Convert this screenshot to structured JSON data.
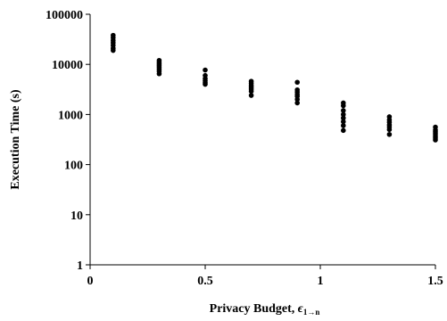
{
  "chart_data": {
    "type": "scatter",
    "title": "",
    "xlabel": "Privacy Budget, ",
    "xlabel_symbol": "ϵ",
    "xlabel_subscript": "1→n",
    "ylabel": "Execution Time (s)",
    "xlim": [
      0,
      1.5
    ],
    "ylim": [
      1,
      100000
    ],
    "yscale": "log",
    "grid": false,
    "legend": "none",
    "x_ticks": [
      0,
      0.5,
      1,
      1.5
    ],
    "x_tick_labels": [
      "0",
      "0.5",
      "1",
      "1.5"
    ],
    "y_ticks": [
      1,
      10,
      100,
      1000,
      10000,
      100000
    ],
    "y_tick_labels": [
      "1",
      "10",
      "100",
      "1000",
      "10000",
      "100000"
    ],
    "marker_color": "#000000",
    "points": [
      {
        "x": 0.1,
        "y": 38000
      },
      {
        "x": 0.1,
        "y": 34000
      },
      {
        "x": 0.1,
        "y": 30000
      },
      {
        "x": 0.1,
        "y": 27000
      },
      {
        "x": 0.1,
        "y": 24000
      },
      {
        "x": 0.1,
        "y": 21000
      },
      {
        "x": 0.1,
        "y": 19000
      },
      {
        "x": 0.3,
        "y": 12000
      },
      {
        "x": 0.3,
        "y": 11000
      },
      {
        "x": 0.3,
        "y": 10200
      },
      {
        "x": 0.3,
        "y": 9500
      },
      {
        "x": 0.3,
        "y": 8800
      },
      {
        "x": 0.3,
        "y": 8000
      },
      {
        "x": 0.3,
        "y": 7300
      },
      {
        "x": 0.3,
        "y": 6500
      },
      {
        "x": 0.5,
        "y": 7700
      },
      {
        "x": 0.5,
        "y": 6000
      },
      {
        "x": 0.5,
        "y": 5200
      },
      {
        "x": 0.5,
        "y": 4700
      },
      {
        "x": 0.5,
        "y": 4300
      },
      {
        "x": 0.5,
        "y": 4000
      },
      {
        "x": 0.7,
        "y": 4600
      },
      {
        "x": 0.7,
        "y": 4200
      },
      {
        "x": 0.7,
        "y": 3800
      },
      {
        "x": 0.7,
        "y": 3500
      },
      {
        "x": 0.7,
        "y": 3200
      },
      {
        "x": 0.7,
        "y": 2900
      },
      {
        "x": 0.7,
        "y": 2400
      },
      {
        "x": 0.9,
        "y": 4400
      },
      {
        "x": 0.9,
        "y": 3100
      },
      {
        "x": 0.9,
        "y": 2800
      },
      {
        "x": 0.9,
        "y": 2500
      },
      {
        "x": 0.9,
        "y": 2300
      },
      {
        "x": 0.9,
        "y": 2000
      },
      {
        "x": 0.9,
        "y": 1700
      },
      {
        "x": 1.1,
        "y": 1700
      },
      {
        "x": 1.1,
        "y": 1500
      },
      {
        "x": 1.1,
        "y": 1200
      },
      {
        "x": 1.1,
        "y": 1000
      },
      {
        "x": 1.1,
        "y": 850
      },
      {
        "x": 1.1,
        "y": 720
      },
      {
        "x": 1.1,
        "y": 600
      },
      {
        "x": 1.1,
        "y": 480
      },
      {
        "x": 1.3,
        "y": 900
      },
      {
        "x": 1.3,
        "y": 780
      },
      {
        "x": 1.3,
        "y": 700
      },
      {
        "x": 1.3,
        "y": 620
      },
      {
        "x": 1.3,
        "y": 560
      },
      {
        "x": 1.3,
        "y": 500
      },
      {
        "x": 1.3,
        "y": 400
      },
      {
        "x": 1.5,
        "y": 560
      },
      {
        "x": 1.5,
        "y": 490
      },
      {
        "x": 1.5,
        "y": 450
      },
      {
        "x": 1.5,
        "y": 410
      },
      {
        "x": 1.5,
        "y": 370
      },
      {
        "x": 1.5,
        "y": 340
      },
      {
        "x": 1.5,
        "y": 310
      }
    ]
  }
}
